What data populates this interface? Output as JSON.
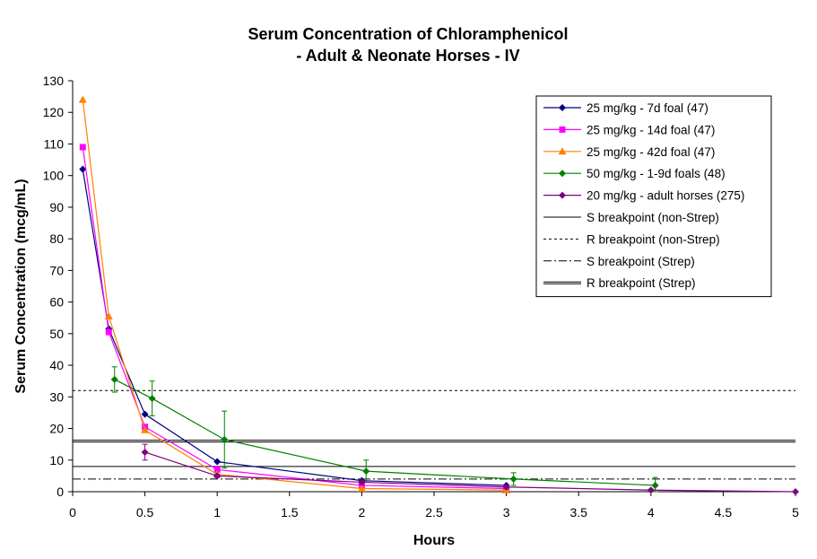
{
  "chart_data": {
    "type": "line",
    "title_lines": [
      "Serum Concentration of Chloramphenicol",
      "- Adult & Neonate Horses - IV"
    ],
    "xlabel": "Hours",
    "ylabel": "Serum Concentration (mcg/mL)",
    "xlim": [
      0,
      5
    ],
    "ylim": [
      0,
      130
    ],
    "x_ticks": [
      0,
      0.5,
      1,
      1.5,
      2,
      2.5,
      3,
      3.5,
      4,
      4.5,
      5
    ],
    "x_tick_labels": [
      "0",
      "0.5",
      "1",
      "1.5",
      "2",
      "2.5",
      "3",
      "3.5",
      "4",
      "4.5",
      "5"
    ],
    "y_ticks": [
      0,
      10,
      20,
      30,
      40,
      50,
      60,
      70,
      80,
      90,
      100,
      110,
      120,
      130
    ],
    "y_tick_labels": [
      "0",
      "10",
      "20",
      "30",
      "40",
      "50",
      "60",
      "70",
      "80",
      "90",
      "100",
      "110",
      "120",
      "130"
    ],
    "grid": false,
    "legend_position": "top-right",
    "series": [
      {
        "name": "25 mg/kg - 7d foal (47)",
        "color": "#000080",
        "marker": "diamond",
        "points": [
          [
            0.07,
            102
          ],
          [
            0.25,
            51.5
          ],
          [
            0.5,
            24.5
          ],
          [
            1,
            9.5
          ],
          [
            2,
            3.5
          ],
          [
            3,
            2
          ]
        ]
      },
      {
        "name": "25 mg/kg - 14d foal (47)",
        "color": "#ff00ff",
        "marker": "square",
        "points": [
          [
            0.07,
            109
          ],
          [
            0.25,
            50.5
          ],
          [
            0.5,
            20.5
          ],
          [
            1,
            7
          ],
          [
            2,
            2
          ],
          [
            3,
            1
          ]
        ]
      },
      {
        "name": "25 mg/kg - 42d foal (47)",
        "color": "#ff8000",
        "marker": "triangle",
        "points": [
          [
            0.07,
            124
          ],
          [
            0.25,
            55.5
          ],
          [
            0.5,
            19.5
          ],
          [
            1,
            5.5
          ],
          [
            2,
            1
          ],
          [
            3,
            0.5
          ]
        ]
      },
      {
        "name": "50 mg/kg - 1-9d foals (48)",
        "color": "#008000",
        "marker": "diamond",
        "points": [
          [
            0.29,
            35.5
          ],
          [
            0.55,
            29.5
          ],
          [
            1.05,
            16.5
          ],
          [
            2.03,
            6.5
          ],
          [
            3.05,
            4
          ],
          [
            4.03,
            2
          ]
        ],
        "error_bars": [
          4,
          5.5,
          9,
          3.5,
          2,
          2.5
        ]
      },
      {
        "name": "20 mg/kg - adult horses (275)",
        "color": "#800080",
        "marker": "diamond",
        "points": [
          [
            0.5,
            12.5
          ],
          [
            1,
            5
          ],
          [
            2,
            3
          ],
          [
            3,
            1.5
          ],
          [
            4,
            0.5
          ],
          [
            5,
            0
          ]
        ],
        "error_bars": [
          2.5,
          0.5,
          0.5,
          0.4,
          0.3,
          0
        ]
      }
    ],
    "reference_lines": [
      {
        "name": "S breakpoint (non-Strep)",
        "y": 8,
        "style": "solid"
      },
      {
        "name": "R breakpoint (non-Strep)",
        "y": 32,
        "style": "dotted"
      },
      {
        "name": "S breakpoint (Strep)",
        "y": 4,
        "style": "dashdot"
      },
      {
        "name": "R breakpoint (Strep)",
        "y": 16,
        "style": "double"
      }
    ]
  }
}
